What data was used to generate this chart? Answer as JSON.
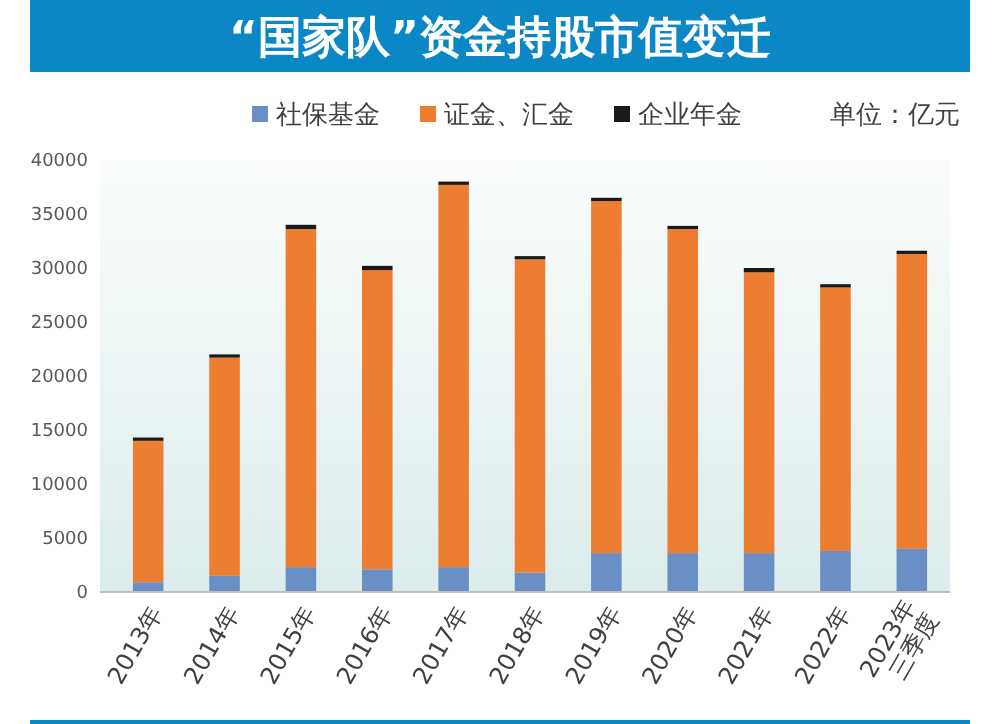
{
  "chart_data": {
    "type": "bar",
    "title": "“国家队”资金持股市值变迁",
    "annotations": [
      "单位：亿元"
    ],
    "categories": [
      "2013年",
      "2014年",
      "2015年",
      "2016年",
      "2017年",
      "2018年",
      "2019年",
      "2020年",
      "2021年",
      "2022年",
      "2023年三季度"
    ],
    "stacked": true,
    "legend": "top right",
    "grid": false,
    "ylim": [
      0,
      40000
    ],
    "yticks": [
      0,
      5000,
      10000,
      15000,
      20000,
      25000,
      30000,
      35000,
      40000
    ],
    "series": [
      {
        "name": "社保基金",
        "color": "#6a8fc4",
        "values": [
          900,
          1500,
          2300,
          2100,
          2300,
          1800,
          3600,
          3600,
          3600,
          3800,
          4000
        ]
      },
      {
        "name": "证金、汇金",
        "color": "#ed7d31",
        "values": [
          13100,
          20200,
          31300,
          27700,
          35400,
          29000,
          32600,
          30000,
          26000,
          24400,
          27300
        ]
      },
      {
        "name": "企业年金",
        "color": "#1a1a1a",
        "values": [
          300,
          300,
          400,
          400,
          300,
          300,
          300,
          300,
          400,
          300,
          300
        ]
      }
    ]
  }
}
